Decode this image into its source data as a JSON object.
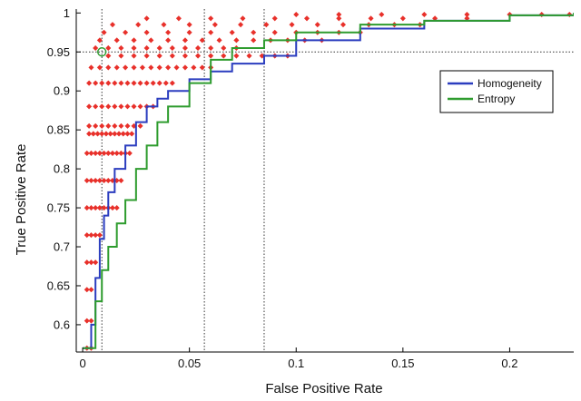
{
  "chart_data": {
    "type": "line",
    "title": "",
    "xlabel": "False Positive Rate",
    "ylabel": "True Positive Rate",
    "xlim": [
      -0.003,
      0.23
    ],
    "ylim": [
      0.565,
      1.005
    ],
    "x_ticks": [
      0,
      0.05,
      0.1,
      0.15,
      0.2
    ],
    "x_tick_labels": [
      "0",
      "0.05",
      "0.1",
      "0.15",
      "0.2"
    ],
    "y_ticks": [
      0.6,
      0.65,
      0.7,
      0.75,
      0.8,
      0.85,
      0.9,
      0.95,
      1
    ],
    "y_tick_labels": [
      "0.6",
      "0.65",
      "0.7",
      "0.75",
      "0.8",
      "0.85",
      "0.9",
      "0.95",
      "1"
    ],
    "grid": false,
    "legend_position": "top-right",
    "reference_lines": {
      "horizontal_y": 0.95,
      "vertical_x": [
        0.009,
        0.057,
        0.085
      ]
    },
    "highlight_point": {
      "x": 0.009,
      "y": 0.95
    },
    "series": [
      {
        "name": "Homogeneity",
        "color": "#2b3dbf",
        "x": [
          0,
          0.004,
          0.006,
          0.008,
          0.01,
          0.012,
          0.015,
          0.02,
          0.025,
          0.03,
          0.035,
          0.04,
          0.05,
          0.06,
          0.07,
          0.085,
          0.1,
          0.13,
          0.16,
          0.2,
          0.23
        ],
        "y": [
          0.57,
          0.6,
          0.66,
          0.71,
          0.74,
          0.77,
          0.8,
          0.83,
          0.86,
          0.88,
          0.89,
          0.9,
          0.915,
          0.925,
          0.935,
          0.945,
          0.965,
          0.98,
          0.99,
          0.997,
          1.0
        ]
      },
      {
        "name": "Entropy",
        "color": "#2e9c2e",
        "x": [
          0,
          0.006,
          0.009,
          0.012,
          0.016,
          0.02,
          0.025,
          0.03,
          0.035,
          0.04,
          0.05,
          0.06,
          0.07,
          0.085,
          0.1,
          0.13,
          0.16,
          0.2,
          0.23
        ],
        "y": [
          0.57,
          0.63,
          0.67,
          0.7,
          0.73,
          0.76,
          0.8,
          0.83,
          0.86,
          0.88,
          0.91,
          0.94,
          0.955,
          0.965,
          0.975,
          0.985,
          0.99,
          0.997,
          1.0
        ]
      }
    ],
    "scatter": {
      "color": "#e8302a",
      "points": [
        {
          "x": 0.002,
          "y": 0.57
        },
        {
          "x": 0.004,
          "y": 0.57
        },
        {
          "x": 0.002,
          "y": 0.605
        },
        {
          "x": 0.004,
          "y": 0.605
        },
        {
          "x": 0.002,
          "y": 0.645
        },
        {
          "x": 0.004,
          "y": 0.645
        },
        {
          "x": 0.002,
          "y": 0.68
        },
        {
          "x": 0.004,
          "y": 0.68
        },
        {
          "x": 0.006,
          "y": 0.68
        },
        {
          "x": 0.002,
          "y": 0.715
        },
        {
          "x": 0.004,
          "y": 0.715
        },
        {
          "x": 0.006,
          "y": 0.715
        },
        {
          "x": 0.008,
          "y": 0.715
        },
        {
          "x": 0.002,
          "y": 0.75
        },
        {
          "x": 0.004,
          "y": 0.75
        },
        {
          "x": 0.006,
          "y": 0.75
        },
        {
          "x": 0.008,
          "y": 0.75
        },
        {
          "x": 0.01,
          "y": 0.75
        },
        {
          "x": 0.012,
          "y": 0.75
        },
        {
          "x": 0.014,
          "y": 0.75
        },
        {
          "x": 0.016,
          "y": 0.75
        },
        {
          "x": 0.002,
          "y": 0.785
        },
        {
          "x": 0.004,
          "y": 0.785
        },
        {
          "x": 0.006,
          "y": 0.785
        },
        {
          "x": 0.008,
          "y": 0.785
        },
        {
          "x": 0.01,
          "y": 0.785
        },
        {
          "x": 0.012,
          "y": 0.785
        },
        {
          "x": 0.014,
          "y": 0.785
        },
        {
          "x": 0.016,
          "y": 0.785
        },
        {
          "x": 0.018,
          "y": 0.785
        },
        {
          "x": 0.002,
          "y": 0.82
        },
        {
          "x": 0.004,
          "y": 0.82
        },
        {
          "x": 0.006,
          "y": 0.82
        },
        {
          "x": 0.008,
          "y": 0.82
        },
        {
          "x": 0.01,
          "y": 0.82
        },
        {
          "x": 0.012,
          "y": 0.82
        },
        {
          "x": 0.014,
          "y": 0.82
        },
        {
          "x": 0.016,
          "y": 0.82
        },
        {
          "x": 0.018,
          "y": 0.82
        },
        {
          "x": 0.02,
          "y": 0.82
        },
        {
          "x": 0.022,
          "y": 0.82
        },
        {
          "x": 0.003,
          "y": 0.845
        },
        {
          "x": 0.005,
          "y": 0.845
        },
        {
          "x": 0.007,
          "y": 0.845
        },
        {
          "x": 0.009,
          "y": 0.845
        },
        {
          "x": 0.011,
          "y": 0.845
        },
        {
          "x": 0.013,
          "y": 0.845
        },
        {
          "x": 0.015,
          "y": 0.845
        },
        {
          "x": 0.017,
          "y": 0.845
        },
        {
          "x": 0.019,
          "y": 0.845
        },
        {
          "x": 0.021,
          "y": 0.845
        },
        {
          "x": 0.023,
          "y": 0.845
        },
        {
          "x": 0.003,
          "y": 0.855
        },
        {
          "x": 0.006,
          "y": 0.855
        },
        {
          "x": 0.009,
          "y": 0.855
        },
        {
          "x": 0.012,
          "y": 0.855
        },
        {
          "x": 0.015,
          "y": 0.855
        },
        {
          "x": 0.018,
          "y": 0.855
        },
        {
          "x": 0.021,
          "y": 0.855
        },
        {
          "x": 0.024,
          "y": 0.855
        },
        {
          "x": 0.027,
          "y": 0.855
        },
        {
          "x": 0.003,
          "y": 0.88
        },
        {
          "x": 0.006,
          "y": 0.88
        },
        {
          "x": 0.009,
          "y": 0.88
        },
        {
          "x": 0.012,
          "y": 0.88
        },
        {
          "x": 0.015,
          "y": 0.88
        },
        {
          "x": 0.018,
          "y": 0.88
        },
        {
          "x": 0.021,
          "y": 0.88
        },
        {
          "x": 0.024,
          "y": 0.88
        },
        {
          "x": 0.027,
          "y": 0.88
        },
        {
          "x": 0.03,
          "y": 0.88
        },
        {
          "x": 0.033,
          "y": 0.88
        },
        {
          "x": 0.003,
          "y": 0.91
        },
        {
          "x": 0.006,
          "y": 0.91
        },
        {
          "x": 0.009,
          "y": 0.91
        },
        {
          "x": 0.012,
          "y": 0.91
        },
        {
          "x": 0.015,
          "y": 0.91
        },
        {
          "x": 0.018,
          "y": 0.91
        },
        {
          "x": 0.021,
          "y": 0.91
        },
        {
          "x": 0.024,
          "y": 0.91
        },
        {
          "x": 0.027,
          "y": 0.91
        },
        {
          "x": 0.03,
          "y": 0.91
        },
        {
          "x": 0.033,
          "y": 0.91
        },
        {
          "x": 0.036,
          "y": 0.91
        },
        {
          "x": 0.039,
          "y": 0.91
        },
        {
          "x": 0.042,
          "y": 0.91
        },
        {
          "x": 0.004,
          "y": 0.93
        },
        {
          "x": 0.008,
          "y": 0.93
        },
        {
          "x": 0.012,
          "y": 0.93
        },
        {
          "x": 0.016,
          "y": 0.93
        },
        {
          "x": 0.02,
          "y": 0.93
        },
        {
          "x": 0.024,
          "y": 0.93
        },
        {
          "x": 0.028,
          "y": 0.93
        },
        {
          "x": 0.032,
          "y": 0.93
        },
        {
          "x": 0.036,
          "y": 0.93
        },
        {
          "x": 0.04,
          "y": 0.93
        },
        {
          "x": 0.044,
          "y": 0.93
        },
        {
          "x": 0.048,
          "y": 0.93
        },
        {
          "x": 0.052,
          "y": 0.93
        },
        {
          "x": 0.056,
          "y": 0.93
        },
        {
          "x": 0.06,
          "y": 0.93
        },
        {
          "x": 0.012,
          "y": 0.945
        },
        {
          "x": 0.018,
          "y": 0.945
        },
        {
          "x": 0.024,
          "y": 0.945
        },
        {
          "x": 0.03,
          "y": 0.945
        },
        {
          "x": 0.036,
          "y": 0.945
        },
        {
          "x": 0.042,
          "y": 0.945
        },
        {
          "x": 0.048,
          "y": 0.945
        },
        {
          "x": 0.054,
          "y": 0.945
        },
        {
          "x": 0.06,
          "y": 0.945
        },
        {
          "x": 0.066,
          "y": 0.945
        },
        {
          "x": 0.072,
          "y": 0.945
        },
        {
          "x": 0.078,
          "y": 0.945
        },
        {
          "x": 0.084,
          "y": 0.945
        },
        {
          "x": 0.09,
          "y": 0.945
        },
        {
          "x": 0.096,
          "y": 0.945
        },
        {
          "x": 0.006,
          "y": 0.955
        },
        {
          "x": 0.012,
          "y": 0.955
        },
        {
          "x": 0.018,
          "y": 0.955
        },
        {
          "x": 0.024,
          "y": 0.955
        },
        {
          "x": 0.03,
          "y": 0.955
        },
        {
          "x": 0.036,
          "y": 0.955
        },
        {
          "x": 0.042,
          "y": 0.955
        },
        {
          "x": 0.048,
          "y": 0.955
        },
        {
          "x": 0.054,
          "y": 0.955
        },
        {
          "x": 0.06,
          "y": 0.955
        },
        {
          "x": 0.066,
          "y": 0.955
        },
        {
          "x": 0.072,
          "y": 0.955
        },
        {
          "x": 0.008,
          "y": 0.965
        },
        {
          "x": 0.016,
          "y": 0.965
        },
        {
          "x": 0.024,
          "y": 0.965
        },
        {
          "x": 0.032,
          "y": 0.965
        },
        {
          "x": 0.04,
          "y": 0.965
        },
        {
          "x": 0.048,
          "y": 0.965
        },
        {
          "x": 0.056,
          "y": 0.965
        },
        {
          "x": 0.064,
          "y": 0.965
        },
        {
          "x": 0.072,
          "y": 0.965
        },
        {
          "x": 0.08,
          "y": 0.965
        },
        {
          "x": 0.088,
          "y": 0.965
        },
        {
          "x": 0.096,
          "y": 0.965
        },
        {
          "x": 0.104,
          "y": 0.965
        },
        {
          "x": 0.112,
          "y": 0.965
        },
        {
          "x": 0.01,
          "y": 0.975
        },
        {
          "x": 0.02,
          "y": 0.975
        },
        {
          "x": 0.03,
          "y": 0.975
        },
        {
          "x": 0.04,
          "y": 0.975
        },
        {
          "x": 0.05,
          "y": 0.975
        },
        {
          "x": 0.06,
          "y": 0.975
        },
        {
          "x": 0.07,
          "y": 0.975
        },
        {
          "x": 0.08,
          "y": 0.975
        },
        {
          "x": 0.09,
          "y": 0.975
        },
        {
          "x": 0.1,
          "y": 0.975
        },
        {
          "x": 0.11,
          "y": 0.975
        },
        {
          "x": 0.12,
          "y": 0.975
        },
        {
          "x": 0.13,
          "y": 0.975
        },
        {
          "x": 0.014,
          "y": 0.985
        },
        {
          "x": 0.026,
          "y": 0.985
        },
        {
          "x": 0.038,
          "y": 0.985
        },
        {
          "x": 0.05,
          "y": 0.985
        },
        {
          "x": 0.062,
          "y": 0.985
        },
        {
          "x": 0.074,
          "y": 0.985
        },
        {
          "x": 0.086,
          "y": 0.985
        },
        {
          "x": 0.098,
          "y": 0.985
        },
        {
          "x": 0.11,
          "y": 0.985
        },
        {
          "x": 0.122,
          "y": 0.985
        },
        {
          "x": 0.134,
          "y": 0.985
        },
        {
          "x": 0.146,
          "y": 0.985
        },
        {
          "x": 0.158,
          "y": 0.985
        },
        {
          "x": 0.03,
          "y": 0.993
        },
        {
          "x": 0.045,
          "y": 0.993
        },
        {
          "x": 0.06,
          "y": 0.993
        },
        {
          "x": 0.075,
          "y": 0.993
        },
        {
          "x": 0.09,
          "y": 0.993
        },
        {
          "x": 0.105,
          "y": 0.993
        },
        {
          "x": 0.12,
          "y": 0.993
        },
        {
          "x": 0.135,
          "y": 0.993
        },
        {
          "x": 0.15,
          "y": 0.993
        },
        {
          "x": 0.165,
          "y": 0.993
        },
        {
          "x": 0.18,
          "y": 0.993
        },
        {
          "x": 0.1,
          "y": 0.998
        },
        {
          "x": 0.12,
          "y": 0.998
        },
        {
          "x": 0.14,
          "y": 0.998
        },
        {
          "x": 0.16,
          "y": 0.998
        },
        {
          "x": 0.18,
          "y": 0.998
        },
        {
          "x": 0.2,
          "y": 0.998
        },
        {
          "x": 0.215,
          "y": 0.998
        },
        {
          "x": 0.228,
          "y": 0.998
        }
      ]
    }
  },
  "colors": {
    "axis": "#000000",
    "reference_line": "#333333",
    "background": "#ffffff"
  }
}
